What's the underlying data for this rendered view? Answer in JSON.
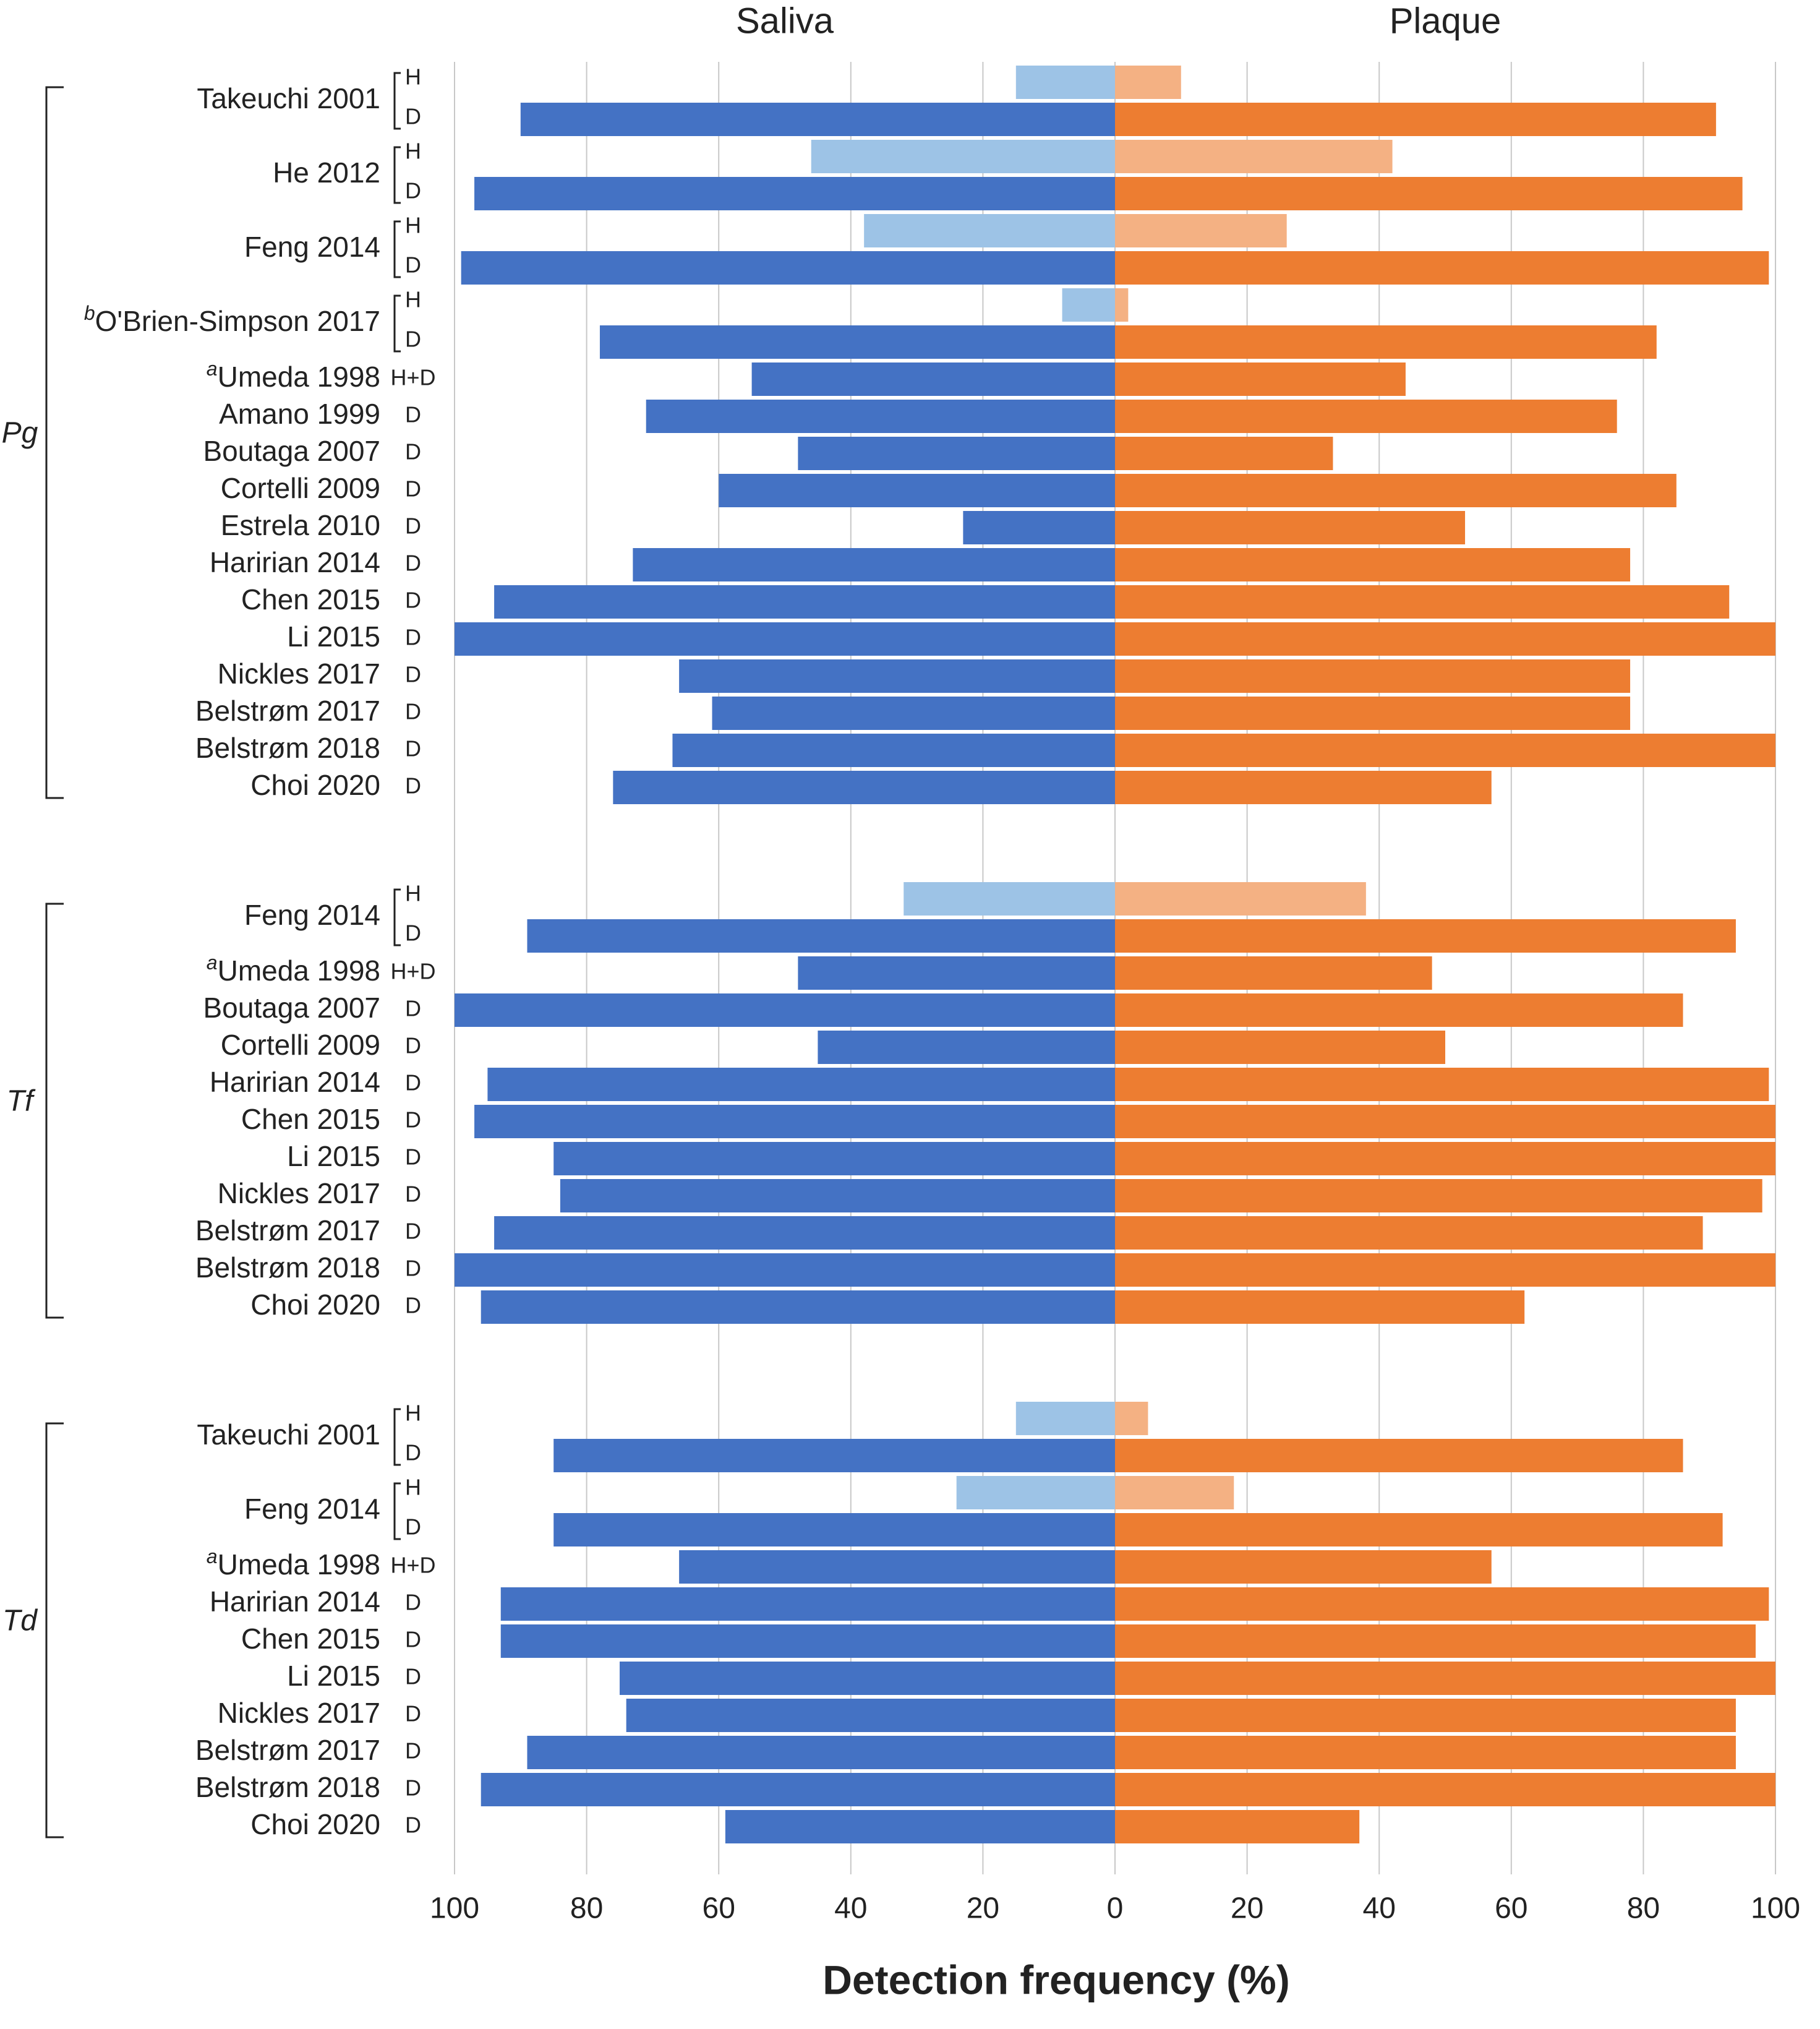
{
  "chart_data": {
    "type": "bar",
    "orientation": "horizontal-butterfly",
    "panel_titles": {
      "left": "Saliva",
      "right": "Plaque"
    },
    "xlabel": "Detection frequency (%)",
    "xlim": [
      0,
      100
    ],
    "x_ticks_left": [
      "100",
      "80",
      "60",
      "40",
      "20"
    ],
    "x_tick_center": "0",
    "x_ticks_right": [
      "20",
      "40",
      "60",
      "80",
      "100"
    ],
    "colors": {
      "saliva_disease": "#4472C4",
      "saliva_healthy": "#9DC3E6",
      "plaque_disease": "#ED7D31",
      "plaque_healthy": "#F4B183"
    },
    "groups": [
      {
        "name": "Pg",
        "studies": [
          {
            "prefix": "",
            "label": "Takeuchi 2001",
            "kind": "pair",
            "tags": [
              "H",
              "D"
            ],
            "bars": [
              {
                "status": "H",
                "saliva": 15,
                "plaque": 10
              },
              {
                "status": "D",
                "saliva": 90,
                "plaque": 91
              }
            ]
          },
          {
            "prefix": "",
            "label": "He 2012",
            "kind": "pair",
            "tags": [
              "H",
              "D"
            ],
            "bars": [
              {
                "status": "H",
                "saliva": 46,
                "plaque": 42
              },
              {
                "status": "D",
                "saliva": 97,
                "plaque": 95
              }
            ]
          },
          {
            "prefix": "",
            "label": "Feng 2014",
            "kind": "pair",
            "tags": [
              "H",
              "D"
            ],
            "bars": [
              {
                "status": "H",
                "saliva": 38,
                "plaque": 26
              },
              {
                "status": "D",
                "saliva": 99,
                "plaque": 99
              }
            ]
          },
          {
            "prefix": "b",
            "label": "O'Brien-Simpson 2017",
            "kind": "pair",
            "tags": [
              "H",
              "D"
            ],
            "bars": [
              {
                "status": "H",
                "saliva": 8,
                "plaque": 2
              },
              {
                "status": "D",
                "saliva": 78,
                "plaque": 82
              }
            ]
          },
          {
            "prefix": "a",
            "label": "Umeda 1998",
            "kind": "single",
            "tags": [
              "H+D"
            ],
            "bars": [
              {
                "status": "H+D",
                "saliva": 55,
                "plaque": 44
              }
            ]
          },
          {
            "prefix": "",
            "label": "Amano 1999",
            "kind": "single",
            "tags": [
              "D"
            ],
            "bars": [
              {
                "status": "D",
                "saliva": 71,
                "plaque": 76
              }
            ]
          },
          {
            "prefix": "",
            "label": "Boutaga 2007",
            "kind": "single",
            "tags": [
              "D"
            ],
            "bars": [
              {
                "status": "D",
                "saliva": 48,
                "plaque": 33
              }
            ]
          },
          {
            "prefix": "",
            "label": "Cortelli 2009",
            "kind": "single",
            "tags": [
              "D"
            ],
            "bars": [
              {
                "status": "D",
                "saliva": 60,
                "plaque": 85
              }
            ]
          },
          {
            "prefix": "",
            "label": "Estrela 2010",
            "kind": "single",
            "tags": [
              "D"
            ],
            "bars": [
              {
                "status": "D",
                "saliva": 23,
                "plaque": 53
              }
            ]
          },
          {
            "prefix": "",
            "label": "Haririan 2014",
            "kind": "single",
            "tags": [
              "D"
            ],
            "bars": [
              {
                "status": "D",
                "saliva": 73,
                "plaque": 78
              }
            ]
          },
          {
            "prefix": "",
            "label": "Chen 2015",
            "kind": "single",
            "tags": [
              "D"
            ],
            "bars": [
              {
                "status": "D",
                "saliva": 94,
                "plaque": 93
              }
            ]
          },
          {
            "prefix": "",
            "label": "Li 2015",
            "kind": "single",
            "tags": [
              "D"
            ],
            "bars": [
              {
                "status": "D",
                "saliva": 100,
                "plaque": 100
              }
            ]
          },
          {
            "prefix": "",
            "label": "Nickles 2017",
            "kind": "single",
            "tags": [
              "D"
            ],
            "bars": [
              {
                "status": "D",
                "saliva": 66,
                "plaque": 78
              }
            ]
          },
          {
            "prefix": "",
            "label": "Belstrøm 2017",
            "kind": "single",
            "tags": [
              "D"
            ],
            "bars": [
              {
                "status": "D",
                "saliva": 61,
                "plaque": 78
              }
            ]
          },
          {
            "prefix": "",
            "label": "Belstrøm 2018",
            "kind": "single",
            "tags": [
              "D"
            ],
            "bars": [
              {
                "status": "D",
                "saliva": 67,
                "plaque": 100
              }
            ]
          },
          {
            "prefix": "",
            "label": "Choi 2020",
            "kind": "single",
            "tags": [
              "D"
            ],
            "bars": [
              {
                "status": "D",
                "saliva": 76,
                "plaque": 57
              }
            ]
          }
        ]
      },
      {
        "name": "Tf",
        "studies": [
          {
            "prefix": "",
            "label": "Feng 2014",
            "kind": "pair",
            "tags": [
              "H",
              "D"
            ],
            "bars": [
              {
                "status": "H",
                "saliva": 32,
                "plaque": 38
              },
              {
                "status": "D",
                "saliva": 89,
                "plaque": 94
              }
            ]
          },
          {
            "prefix": "a",
            "label": "Umeda 1998",
            "kind": "single",
            "tags": [
              "H+D"
            ],
            "bars": [
              {
                "status": "H+D",
                "saliva": 48,
                "plaque": 48
              }
            ]
          },
          {
            "prefix": "",
            "label": "Boutaga 2007",
            "kind": "single",
            "tags": [
              "D"
            ],
            "bars": [
              {
                "status": "D",
                "saliva": 100,
                "plaque": 86
              }
            ]
          },
          {
            "prefix": "",
            "label": "Cortelli 2009",
            "kind": "single",
            "tags": [
              "D"
            ],
            "bars": [
              {
                "status": "D",
                "saliva": 45,
                "plaque": 50
              }
            ]
          },
          {
            "prefix": "",
            "label": "Haririan 2014",
            "kind": "single",
            "tags": [
              "D"
            ],
            "bars": [
              {
                "status": "D",
                "saliva": 95,
                "plaque": 99
              }
            ]
          },
          {
            "prefix": "",
            "label": "Chen 2015",
            "kind": "single",
            "tags": [
              "D"
            ],
            "bars": [
              {
                "status": "D",
                "saliva": 97,
                "plaque": 100
              }
            ]
          },
          {
            "prefix": "",
            "label": "Li 2015",
            "kind": "single",
            "tags": [
              "D"
            ],
            "bars": [
              {
                "status": "D",
                "saliva": 85,
                "plaque": 100
              }
            ]
          },
          {
            "prefix": "",
            "label": "Nickles 2017",
            "kind": "single",
            "tags": [
              "D"
            ],
            "bars": [
              {
                "status": "D",
                "saliva": 84,
                "plaque": 98
              }
            ]
          },
          {
            "prefix": "",
            "label": "Belstrøm 2017",
            "kind": "single",
            "tags": [
              "D"
            ],
            "bars": [
              {
                "status": "D",
                "saliva": 94,
                "plaque": 89
              }
            ]
          },
          {
            "prefix": "",
            "label": "Belstrøm 2018",
            "kind": "single",
            "tags": [
              "D"
            ],
            "bars": [
              {
                "status": "D",
                "saliva": 100,
                "plaque": 100
              }
            ]
          },
          {
            "prefix": "",
            "label": "Choi 2020",
            "kind": "single",
            "tags": [
              "D"
            ],
            "bars": [
              {
                "status": "D",
                "saliva": 96,
                "plaque": 62
              }
            ]
          }
        ]
      },
      {
        "name": "Td",
        "studies": [
          {
            "prefix": "",
            "label": "Takeuchi 2001",
            "kind": "pair",
            "tags": [
              "H",
              "D"
            ],
            "bars": [
              {
                "status": "H",
                "saliva": 15,
                "plaque": 5
              },
              {
                "status": "D",
                "saliva": 85,
                "plaque": 86
              }
            ]
          },
          {
            "prefix": "",
            "label": "Feng 2014",
            "kind": "pair",
            "tags": [
              "H",
              "D"
            ],
            "bars": [
              {
                "status": "H",
                "saliva": 24,
                "plaque": 18
              },
              {
                "status": "D",
                "saliva": 85,
                "plaque": 92
              }
            ]
          },
          {
            "prefix": "a",
            "label": "Umeda 1998",
            "kind": "single",
            "tags": [
              "H+D"
            ],
            "bars": [
              {
                "status": "H+D",
                "saliva": 66,
                "plaque": 57
              }
            ]
          },
          {
            "prefix": "",
            "label": "Haririan 2014",
            "kind": "single",
            "tags": [
              "D"
            ],
            "bars": [
              {
                "status": "D",
                "saliva": 93,
                "plaque": 99
              }
            ]
          },
          {
            "prefix": "",
            "label": "Chen 2015",
            "kind": "single",
            "tags": [
              "D"
            ],
            "bars": [
              {
                "status": "D",
                "saliva": 93,
                "plaque": 97
              }
            ]
          },
          {
            "prefix": "",
            "label": "Li 2015",
            "kind": "single",
            "tags": [
              "D"
            ],
            "bars": [
              {
                "status": "D",
                "saliva": 75,
                "plaque": 100
              }
            ]
          },
          {
            "prefix": "",
            "label": "Nickles 2017",
            "kind": "single",
            "tags": [
              "D"
            ],
            "bars": [
              {
                "status": "D",
                "saliva": 74,
                "plaque": 94
              }
            ]
          },
          {
            "prefix": "",
            "label": "Belstrøm 2017",
            "kind": "single",
            "tags": [
              "D"
            ],
            "bars": [
              {
                "status": "D",
                "saliva": 89,
                "plaque": 94
              }
            ]
          },
          {
            "prefix": "",
            "label": "Belstrøm 2018",
            "kind": "single",
            "tags": [
              "D"
            ],
            "bars": [
              {
                "status": "D",
                "saliva": 96,
                "plaque": 100
              }
            ]
          },
          {
            "prefix": "",
            "label": "Choi 2020",
            "kind": "single",
            "tags": [
              "D"
            ],
            "bars": [
              {
                "status": "D",
                "saliva": 59,
                "plaque": 37
              }
            ]
          }
        ]
      }
    ]
  }
}
